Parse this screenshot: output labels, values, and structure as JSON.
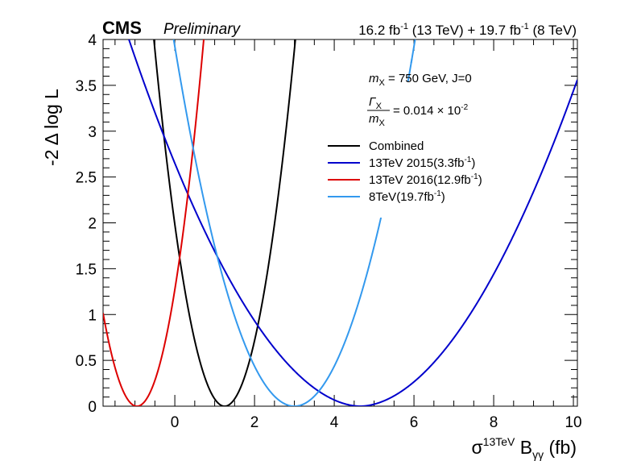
{
  "header": {
    "cms": "CMS",
    "preliminary": "Preliminary",
    "lumi": "16.2 fb⁻¹ (13 TeV) + 19.7 fb⁻¹ (8 TeV)"
  },
  "annotations": {
    "mass": "mₓ = 750 GeV, J=0",
    "width_num": "Γₓ",
    "width_den": "mₓ",
    "width_val": "= 0.014 × 10⁻²"
  },
  "chart_data": {
    "type": "line",
    "xlabel": "σ¹³ᵀᵉᵛ Bγγ (fb)",
    "ylabel": "-2 Δ log L",
    "xlim": [
      -1.8,
      10.1
    ],
    "ylim": [
      0,
      4
    ],
    "xticks": [
      "0",
      "2",
      "4",
      "6",
      "8",
      "10"
    ],
    "yticks": [
      "0",
      "0.5",
      "1",
      "1.5",
      "2",
      "2.5",
      "3",
      "3.5",
      "4"
    ],
    "grid": false,
    "legend_position": "top-right",
    "series": [
      {
        "name": "Combined",
        "color": "#000000",
        "min_x": 1.25,
        "a": 1.27,
        "p": 2
      },
      {
        "name": "13TeV 2015(3.3fb⁻¹)",
        "color": "#0000cc",
        "min_x": 4.65,
        "a": 0.152,
        "p": 1.86
      },
      {
        "name": "13TeV 2016(12.9fb⁻¹)",
        "color": "#dd0000",
        "min_x": -0.95,
        "a": 1.41,
        "p": 2.02
      },
      {
        "name": "8TeV(19.7fb⁻¹)",
        "color": "#3399ee",
        "min_x": 3.0,
        "a": 0.436,
        "p": 2
      }
    ]
  }
}
